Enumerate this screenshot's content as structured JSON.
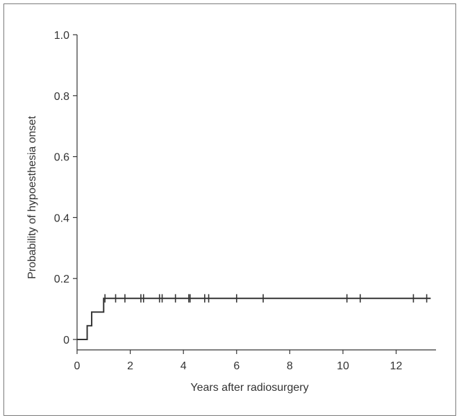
{
  "chart_data": {
    "type": "line",
    "title": "",
    "xlabel": "Years after radiosurgery",
    "ylabel": "Probability of hypoesthesia onset",
    "xlim": [
      0,
      13.5
    ],
    "ylim": [
      0,
      1.0
    ],
    "x_ticks": [
      0,
      2,
      4,
      6,
      8,
      10,
      12
    ],
    "y_ticks": [
      0,
      0.2,
      0.4,
      0.6,
      0.8,
      1.0
    ],
    "x_tick_labels": [
      "0",
      "2",
      "4",
      "6",
      "8",
      "10",
      "12"
    ],
    "y_tick_labels": [
      "0",
      "0.2",
      "0.4",
      "0.6",
      "0.8",
      "1.0"
    ],
    "grid": false,
    "legend": "none",
    "series": [
      {
        "style": "step",
        "x": [
          0,
          0.38,
          0.38,
          0.55,
          0.55,
          1.0,
          1.0,
          13.3
        ],
        "y": [
          0,
          0,
          0.045,
          0.045,
          0.09,
          0.09,
          0.135,
          0.135
        ],
        "censored_x": [
          1.05,
          1.45,
          1.8,
          2.4,
          2.5,
          3.1,
          3.2,
          3.7,
          4.2,
          4.25,
          4.8,
          4.95,
          6.0,
          7.0,
          10.15,
          10.65,
          12.65,
          13.15
        ],
        "censored_y": 0.135
      }
    ]
  }
}
